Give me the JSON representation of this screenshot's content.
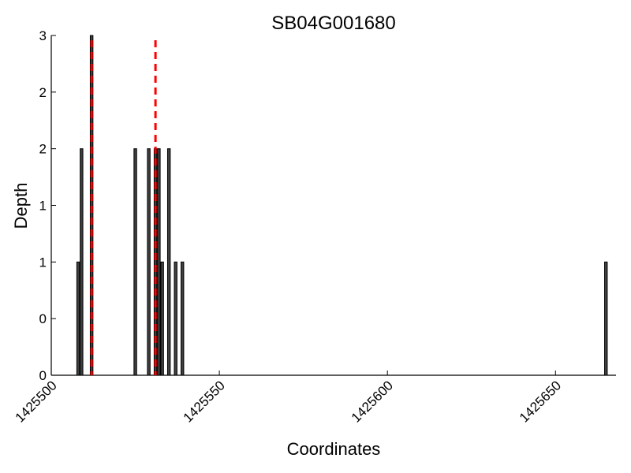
{
  "chart_data": {
    "type": "bar",
    "title": "SB04G001680",
    "xlabel": "Coordinates",
    "ylabel": "Depth",
    "xlim": [
      1425500,
      1425668
    ],
    "ylim": [
      0,
      3
    ],
    "x_ticks": [
      1425500,
      1425550,
      1425600,
      1425650
    ],
    "x_tick_labels": [
      "1425500",
      "1425550",
      "1425600",
      "1425650"
    ],
    "y_ticks": [
      0,
      0.5,
      1,
      1.5,
      2,
      2.5,
      3
    ],
    "y_tick_labels": [
      "0",
      "0",
      "1",
      "1",
      "2",
      "2",
      "3"
    ],
    "bar_color": "#404040",
    "bar_edge_color": "#000000",
    "bars": [
      {
        "x": 1425508,
        "y": 1
      },
      {
        "x": 1425509,
        "y": 2
      },
      {
        "x": 1425512,
        "y": 3
      },
      {
        "x": 1425525,
        "y": 2
      },
      {
        "x": 1425529,
        "y": 2
      },
      {
        "x": 1425531,
        "y": 2
      },
      {
        "x": 1425532,
        "y": 2
      },
      {
        "x": 1425533,
        "y": 1
      },
      {
        "x": 1425535,
        "y": 2
      },
      {
        "x": 1425537,
        "y": 1
      },
      {
        "x": 1425539,
        "y": 1
      },
      {
        "x": 1425665,
        "y": 1
      }
    ],
    "reference_lines": [
      {
        "x": 1425512,
        "color": "#ff0000",
        "style": "dashed"
      },
      {
        "x": 1425531,
        "color": "#ff0000",
        "style": "dashed"
      }
    ],
    "grid": false,
    "legend": "none"
  }
}
